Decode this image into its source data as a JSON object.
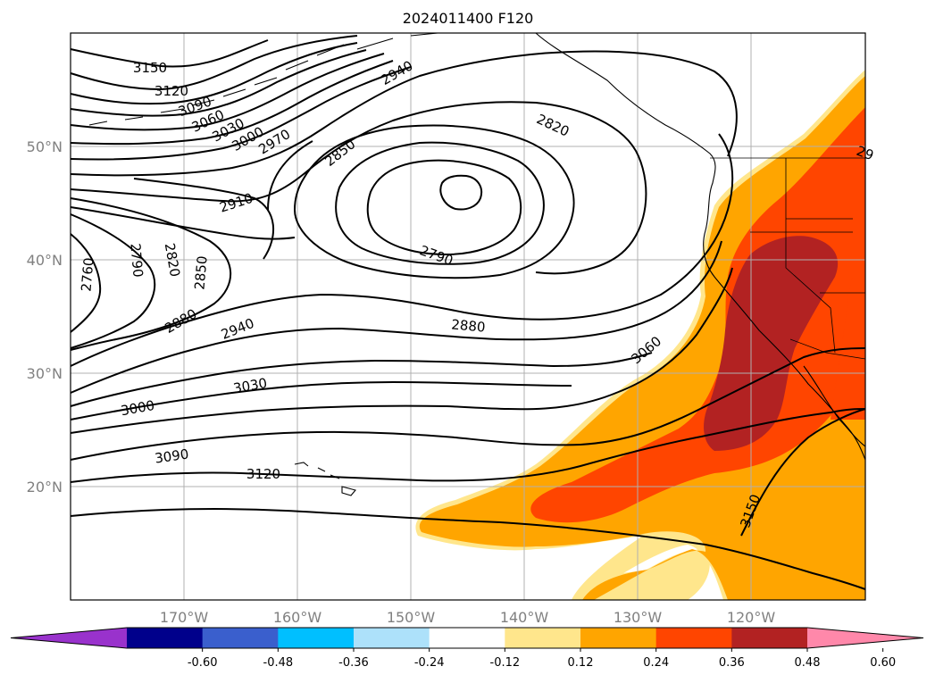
{
  "title": "2024011400 F120",
  "axes": {
    "lon_labels": [
      "170°W",
      "160°W",
      "150°W",
      "140°W",
      "130°W",
      "120°W"
    ],
    "lat_labels": [
      "50°N",
      "40°N",
      "30°N",
      "20°N"
    ],
    "lon_range": [
      -180,
      -110
    ],
    "lat_range": [
      10,
      60
    ],
    "grid": true
  },
  "contours": {
    "labels": [
      "3150",
      "3120",
      "3090",
      "3060",
      "3030",
      "3000",
      "2970",
      "2940",
      "2820",
      "2850",
      "2910",
      "2790",
      "2760",
      "2790",
      "2820",
      "2850",
      "2880",
      "2940",
      "2880",
      "3060",
      "3030",
      "3000",
      "3090",
      "3120",
      "3150",
      "29"
    ]
  },
  "colorbar": {
    "tick_labels": [
      "-0.60",
      "-0.48",
      "-0.36",
      "-0.24",
      "-0.12",
      "0.12",
      "0.24",
      "0.36",
      "0.48",
      "0.60"
    ],
    "colors": [
      "#9932CC",
      "#00008B",
      "#3A5FCD",
      "#00BFFF",
      "#ADE1FA",
      "#FFFFFF",
      "#FFE68C",
      "#FFA500",
      "#FF4500",
      "#B22222",
      "#FF88AA"
    ]
  }
}
